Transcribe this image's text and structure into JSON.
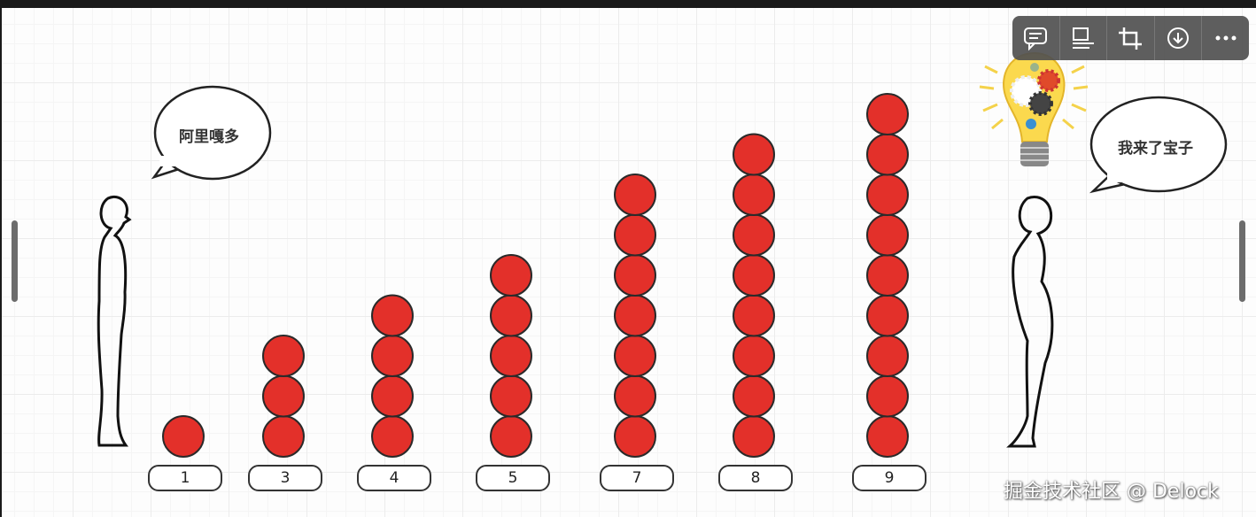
{
  "bubbles": {
    "left": "阿里嘎多",
    "right": "我来了宝子"
  },
  "stacks": [
    {
      "label": "1",
      "count": 1
    },
    {
      "label": "3",
      "count": 3
    },
    {
      "label": "4",
      "count": 4
    },
    {
      "label": "5",
      "count": 5
    },
    {
      "label": "7",
      "count": 7
    },
    {
      "label": "8",
      "count": 8
    },
    {
      "label": "9",
      "count": 9
    }
  ],
  "colors": {
    "ball": "#e3302a",
    "toolbar": "#505050"
  },
  "toolbar": {
    "icons": [
      "comment-icon",
      "caption-icon",
      "crop-icon",
      "download-icon",
      "more-icon"
    ]
  },
  "watermark": "掘金技术社区 @ Delock"
}
